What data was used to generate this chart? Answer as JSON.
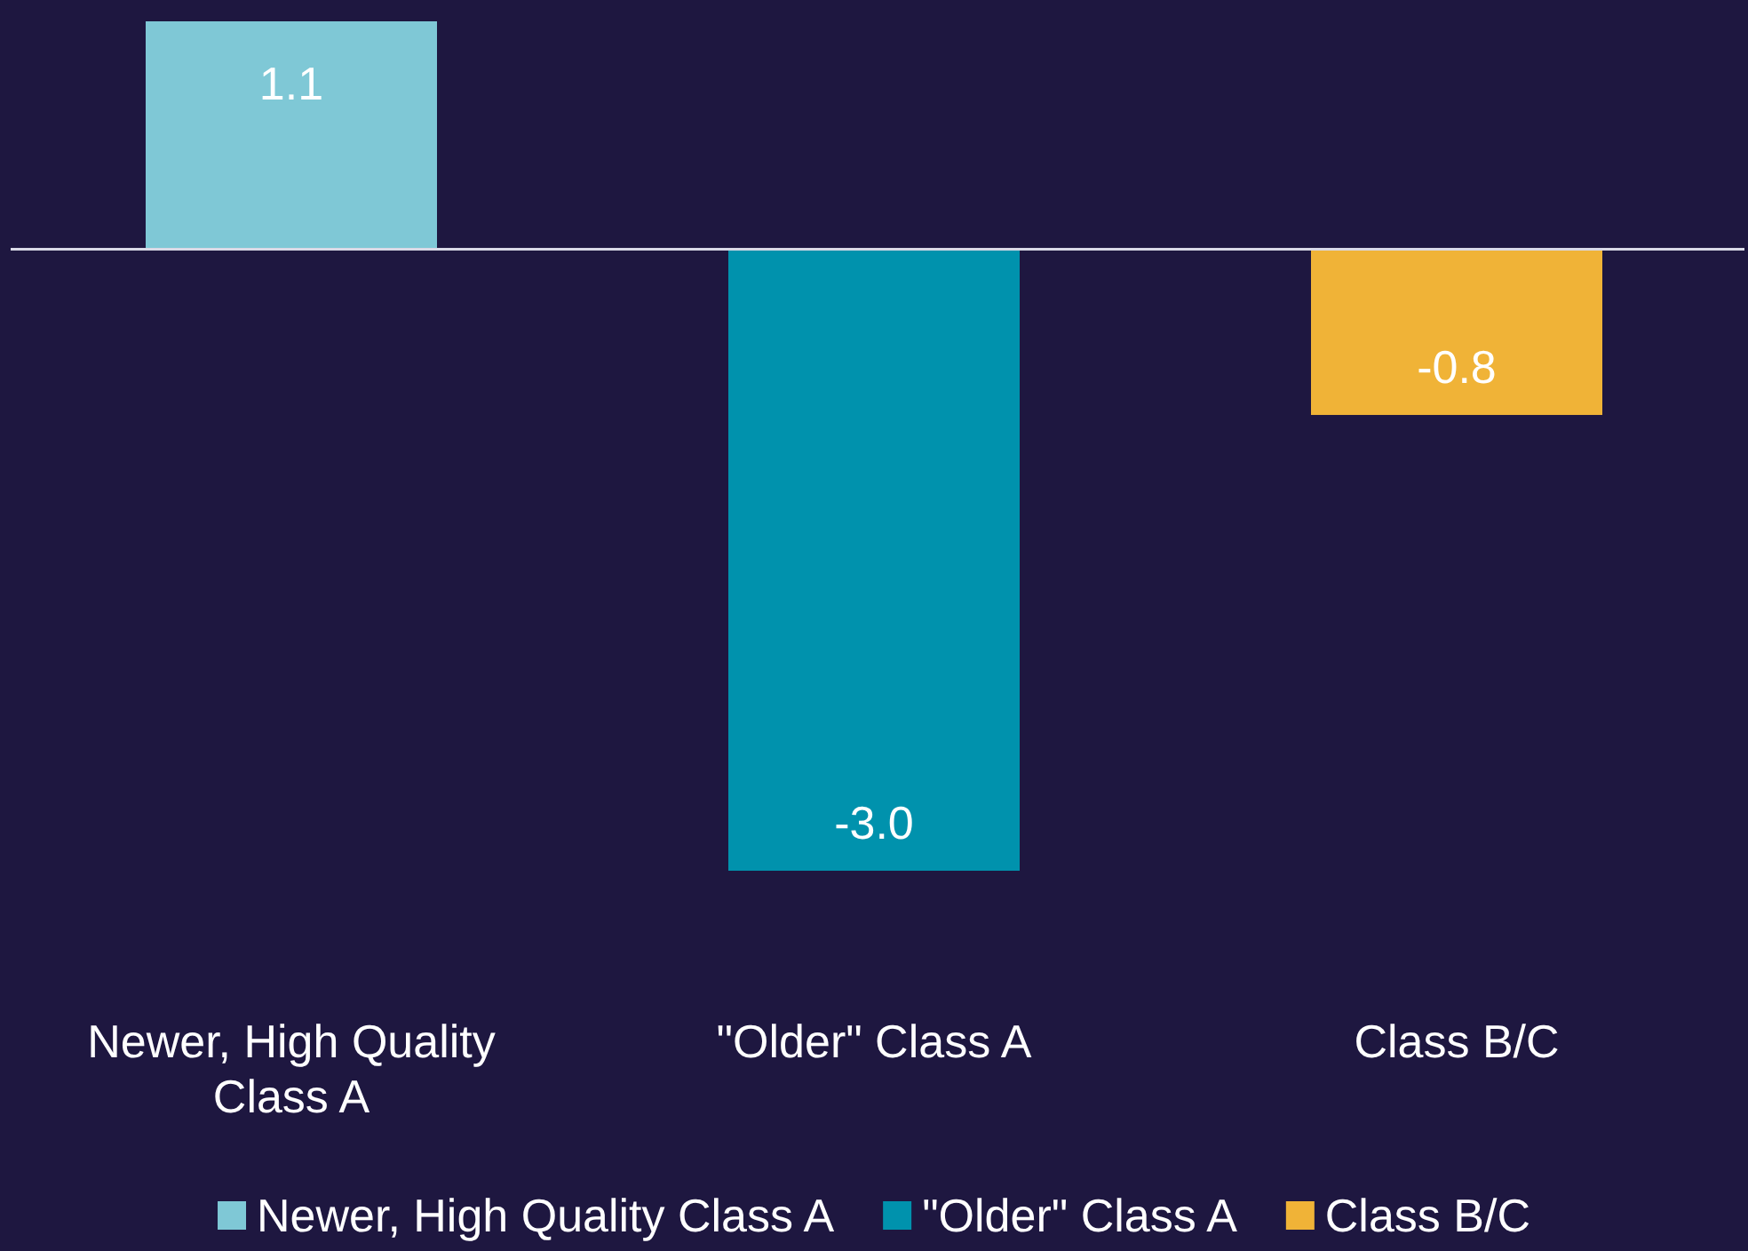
{
  "chart_data": {
    "type": "bar",
    "categories": [
      "Newer, High Quality Class A",
      "\"Older\" Class A",
      "Class B/C"
    ],
    "series": [
      {
        "name": "Newer, High Quality Class A",
        "color": "#7fc8d6",
        "values": [
          1.1,
          null,
          null
        ],
        "value_labels": [
          "1.1",
          null,
          null
        ]
      },
      {
        "name": "\"Older\" Class A",
        "color": "#0092ad",
        "values": [
          null,
          -3.0,
          null
        ],
        "value_labels": [
          null,
          "-3.0",
          null
        ]
      },
      {
        "name": "Class B/C",
        "color": "#f0b337",
        "values": [
          null,
          null,
          -0.8
        ],
        "value_labels": [
          null,
          null,
          "-0.8"
        ]
      }
    ],
    "legend": "bottom"
  }
}
